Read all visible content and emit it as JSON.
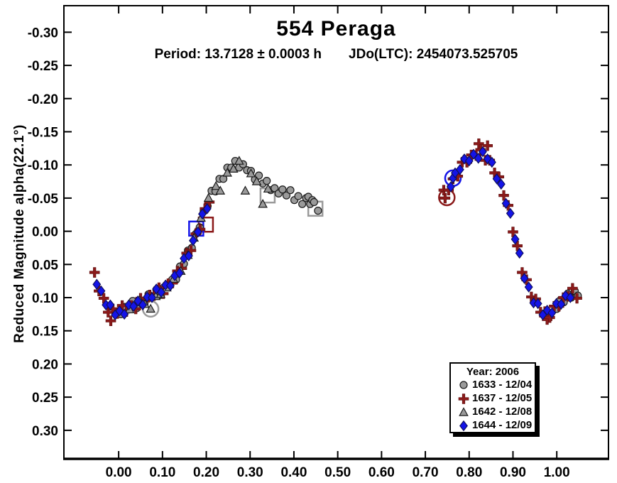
{
  "title": "554 Peraga",
  "subtitle": {
    "period": "Period: 13.7128 ± 0.0003 h",
    "jdo": "JDo(LTC): 2454073.525705"
  },
  "y_axis_label": "Reduced Magnitude alpha(22.1°)",
  "legend": {
    "title": "Year: 2006",
    "entries": [
      {
        "marker": "circle",
        "color": "#9A9A9A",
        "label": "1633 - 12/04"
      },
      {
        "marker": "plus",
        "color": "#8B1A1A",
        "label": "1637 - 12/05"
      },
      {
        "marker": "triangle",
        "color": "#9A9A9A",
        "label": "1642 - 12/08"
      },
      {
        "marker": "diamond",
        "color": "#1414E8",
        "label": "1644 - 12/09"
      }
    ]
  },
  "colors": {
    "gray": "#9A9A9A",
    "dark_red": "#8B1A1A",
    "blue": "#1414E8",
    "outline": "#1A1A1A",
    "axis": "#000000"
  },
  "chart_data": {
    "type": "scatter",
    "title": "554 Peraga",
    "xlabel": "",
    "ylabel": "Reduced Magnitude alpha(22.1°)",
    "x_axis": {
      "min": -0.125,
      "max": 1.118,
      "ticks": [
        0.0,
        0.1,
        0.2,
        0.3,
        0.4,
        0.5,
        0.6,
        0.7,
        0.8,
        0.9,
        1.0
      ]
    },
    "y_axis": {
      "top": -0.34,
      "bottom": 0.343,
      "inverted": true,
      "ticks": [
        -0.3,
        -0.25,
        -0.2,
        -0.15,
        -0.1,
        -0.05,
        0.0,
        0.05,
        0.1,
        0.15,
        0.2,
        0.25,
        0.3
      ]
    },
    "legend_position": "bottom-right",
    "grid": false,
    "series": [
      {
        "name": "1633 - 12/04",
        "marker": "circle",
        "color": "#9A9A9A",
        "points": [
          [
            1.0,
            0.117
          ],
          [
            1.008,
            0.104
          ],
          [
            1.016,
            0.107
          ],
          [
            1.025,
            0.094
          ],
          [
            1.033,
            0.1
          ],
          [
            1.041,
            0.09
          ],
          [
            1.048,
            0.097
          ],
          [
            0.005,
            0.125
          ],
          [
            0.014,
            0.114
          ],
          [
            0.023,
            0.118
          ],
          [
            0.032,
            0.105
          ],
          [
            0.041,
            0.116
          ],
          [
            0.05,
            0.104
          ],
          [
            0.059,
            0.109
          ],
          [
            0.068,
            0.095
          ],
          [
            0.077,
            0.098
          ],
          [
            0.086,
            0.088
          ],
          [
            0.095,
            0.096
          ],
          [
            0.104,
            0.084
          ],
          [
            0.113,
            0.084
          ],
          [
            0.122,
            0.073
          ],
          [
            0.131,
            0.073
          ],
          [
            0.14,
            0.053
          ],
          [
            0.149,
            0.049
          ],
          [
            0.158,
            0.029
          ],
          [
            0.167,
            0.025
          ],
          [
            0.176,
            0.004
          ],
          [
            0.185,
            -0.006
          ],
          [
            0.194,
            -0.03
          ],
          [
            0.203,
            -0.038
          ],
          [
            0.212,
            -0.061
          ],
          [
            0.221,
            -0.06
          ],
          [
            0.23,
            -0.079
          ],
          [
            0.239,
            -0.079
          ],
          [
            0.248,
            -0.096
          ],
          [
            0.257,
            -0.096
          ],
          [
            0.266,
            -0.106
          ],
          [
            0.275,
            -0.096
          ],
          [
            0.284,
            -0.101
          ],
          [
            0.293,
            -0.092
          ],
          [
            0.302,
            -0.091
          ],
          [
            0.311,
            -0.078
          ],
          [
            0.32,
            -0.084
          ],
          [
            0.329,
            -0.072
          ],
          [
            0.338,
            -0.076
          ],
          [
            0.347,
            -0.062
          ],
          [
            0.356,
            -0.065
          ],
          [
            0.365,
            -0.057
          ],
          [
            0.374,
            -0.063
          ],
          [
            0.383,
            -0.054
          ],
          [
            0.392,
            -0.062
          ],
          [
            0.401,
            -0.047
          ],
          [
            0.41,
            -0.053
          ],
          [
            0.419,
            -0.041
          ],
          [
            0.428,
            -0.05
          ],
          [
            0.433,
            -0.052
          ],
          [
            0.437,
            -0.041
          ],
          [
            0.442,
            -0.047
          ],
          [
            0.446,
            -0.044
          ],
          [
            0.455,
            -0.031
          ]
        ]
      },
      {
        "name": "1637 - 12/05",
        "marker": "plus",
        "color": "#8B1A1A",
        "points": [
          [
            -0.055,
            0.062
          ],
          [
            -0.045,
            0.09
          ],
          [
            -0.034,
            0.101
          ],
          [
            -0.024,
            0.122
          ],
          [
            -0.018,
            0.135
          ],
          [
            -0.013,
            0.117
          ],
          [
            -0.003,
            0.124
          ],
          [
            0.008,
            0.112
          ],
          [
            0.018,
            0.121
          ],
          [
            0.029,
            0.112
          ],
          [
            0.039,
            0.117
          ],
          [
            0.05,
            0.101
          ],
          [
            0.06,
            0.105
          ],
          [
            0.071,
            0.096
          ],
          [
            0.081,
            0.097
          ],
          [
            0.092,
            0.085
          ],
          [
            0.102,
            0.094
          ],
          [
            0.113,
            0.079
          ],
          [
            0.123,
            0.078
          ],
          [
            0.134,
            0.06
          ],
          [
            0.144,
            0.056
          ],
          [
            0.155,
            0.033
          ],
          [
            0.165,
            0.029
          ],
          [
            0.176,
            0.004
          ],
          [
            0.186,
            -0.003
          ],
          [
            0.197,
            -0.034
          ],
          [
            0.207,
            -0.044
          ],
          [
            0.745,
            -0.05
          ],
          [
            0.742,
            -0.062
          ],
          [
            0.753,
            -0.062
          ],
          [
            0.763,
            -0.079
          ],
          [
            0.774,
            -0.083
          ],
          [
            0.784,
            -0.104
          ],
          [
            0.795,
            -0.104
          ],
          [
            0.805,
            -0.115
          ],
          [
            0.816,
            -0.114
          ],
          [
            0.822,
            -0.132
          ],
          [
            0.826,
            -0.123
          ],
          [
            0.837,
            -0.107
          ],
          [
            0.842,
            -0.129
          ],
          [
            0.847,
            -0.107
          ],
          [
            0.858,
            -0.088
          ],
          [
            0.868,
            -0.082
          ],
          [
            0.879,
            -0.054
          ],
          [
            0.889,
            -0.039
          ],
          [
            0.9,
            0.001
          ],
          [
            0.91,
            0.022
          ],
          [
            0.921,
            0.062
          ],
          [
            0.931,
            0.073
          ],
          [
            0.942,
            0.099
          ],
          [
            0.952,
            0.102
          ],
          [
            0.963,
            0.122
          ],
          [
            0.973,
            0.121
          ],
          [
            0.978,
            0.133
          ],
          [
            0.984,
            0.13
          ],
          [
            0.994,
            0.113
          ],
          [
            1.005,
            0.113
          ],
          [
            1.015,
            0.1
          ],
          [
            1.026,
            0.098
          ],
          [
            1.036,
            0.086
          ],
          [
            1.046,
            0.101
          ]
        ]
      },
      {
        "name": "1642 - 12/08",
        "marker": "triangle",
        "color": "#9A9A9A",
        "points": [
          [
            0.025,
            0.118
          ],
          [
            0.048,
            0.104
          ],
          [
            0.06,
            0.11
          ],
          [
            0.073,
            0.117
          ],
          [
            0.085,
            0.098
          ],
          [
            0.096,
            0.095
          ],
          [
            0.11,
            0.085
          ],
          [
            0.125,
            0.072
          ],
          [
            0.142,
            0.06
          ],
          [
            0.158,
            0.036
          ],
          [
            0.172,
            0.01
          ],
          [
            0.188,
            -0.02
          ],
          [
            0.205,
            -0.05
          ],
          [
            0.222,
            -0.068
          ],
          [
            0.232,
            -0.061
          ],
          [
            0.248,
            -0.088
          ],
          [
            0.262,
            -0.094
          ],
          [
            0.275,
            -0.106
          ],
          [
            0.289,
            -0.061
          ],
          [
            0.302,
            -0.087
          ],
          [
            0.315,
            -0.075
          ],
          [
            0.329,
            -0.041
          ],
          [
            0.341,
            -0.064
          ]
        ]
      },
      {
        "name": "1644 - 12/09",
        "marker": "diamond",
        "color": "#1414E8",
        "points": [
          [
            -0.05,
            0.08
          ],
          [
            -0.04,
            0.09
          ],
          [
            -0.029,
            0.111
          ],
          [
            -0.019,
            0.111
          ],
          [
            -0.008,
            0.126
          ],
          [
            0.002,
            0.12
          ],
          [
            0.013,
            0.125
          ],
          [
            0.023,
            0.111
          ],
          [
            0.034,
            0.113
          ],
          [
            0.044,
            0.105
          ],
          [
            0.055,
            0.111
          ],
          [
            0.065,
            0.099
          ],
          [
            0.076,
            0.1
          ],
          [
            0.086,
            0.087
          ],
          [
            0.097,
            0.092
          ],
          [
            0.107,
            0.081
          ],
          [
            0.118,
            0.082
          ],
          [
            0.128,
            0.067
          ],
          [
            0.139,
            0.063
          ],
          [
            0.149,
            0.041
          ],
          [
            0.16,
            0.037
          ],
          [
            0.17,
            0.014
          ],
          [
            0.181,
            0.001
          ],
          [
            0.191,
            -0.026
          ],
          [
            0.202,
            -0.034
          ],
          [
            0.763,
            -0.08
          ],
          [
            0.758,
            -0.067
          ],
          [
            0.768,
            -0.088
          ],
          [
            0.779,
            -0.093
          ],
          [
            0.789,
            -0.109
          ],
          [
            0.8,
            -0.106
          ],
          [
            0.81,
            -0.116
          ],
          [
            0.821,
            -0.11
          ],
          [
            0.831,
            -0.12
          ],
          [
            0.842,
            -0.109
          ],
          [
            0.852,
            -0.104
          ],
          [
            0.863,
            -0.079
          ],
          [
            0.873,
            -0.071
          ],
          [
            0.884,
            -0.042
          ],
          [
            0.894,
            -0.027
          ],
          [
            0.905,
            0.012
          ],
          [
            0.915,
            0.033
          ],
          [
            0.926,
            0.071
          ],
          [
            0.936,
            0.084
          ],
          [
            0.947,
            0.108
          ],
          [
            0.957,
            0.109
          ],
          [
            0.968,
            0.126
          ],
          [
            0.978,
            0.119
          ],
          [
            0.989,
            0.123
          ],
          [
            0.999,
            0.109
          ],
          [
            1.01,
            0.11
          ],
          [
            1.02,
            0.097
          ],
          [
            1.031,
            0.1
          ]
        ]
      }
    ],
    "reference_markers": [
      {
        "shape": "square",
        "color": "#9A9A9A",
        "point": [
          0.34,
          -0.054
        ]
      },
      {
        "shape": "square",
        "color": "#9A9A9A",
        "point": [
          0.449,
          -0.034
        ]
      },
      {
        "shape": "square",
        "color": "#8B1A1A",
        "point": [
          0.199,
          -0.01
        ]
      },
      {
        "shape": "square",
        "color": "#1414E8",
        "point": [
          0.177,
          -0.004
        ]
      },
      {
        "shape": "circle",
        "color": "#9A9A9A",
        "point": [
          0.073,
          0.117
        ]
      },
      {
        "shape": "circle",
        "color": "#8B1A1A",
        "point": [
          0.749,
          -0.051
        ]
      },
      {
        "shape": "circle",
        "color": "#1414E8",
        "point": [
          0.763,
          -0.08
        ]
      }
    ]
  }
}
